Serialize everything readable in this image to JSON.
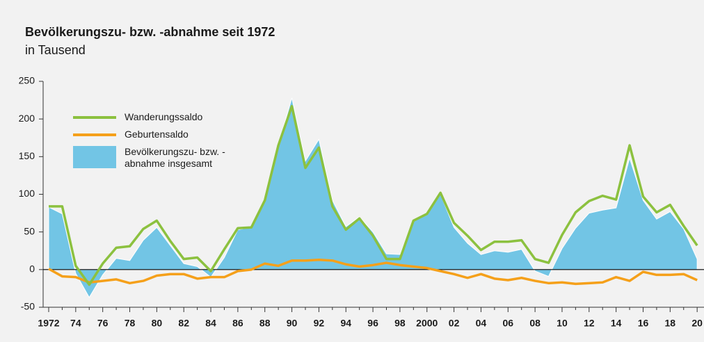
{
  "chart_data": {
    "type": "line",
    "title": "Bevölkerungszu- bzw. -abnahme seit 1972",
    "subtitle": "in Tausend",
    "categories": [
      "1972",
      null,
      "74",
      null,
      "76",
      null,
      "78",
      null,
      "80",
      null,
      "82",
      null,
      "84",
      null,
      "86",
      null,
      "88",
      null,
      "90",
      null,
      "92",
      null,
      "94",
      null,
      "96",
      null,
      "98",
      null,
      "2000",
      null,
      "02",
      null,
      "04",
      null,
      "06",
      null,
      "08",
      null,
      "10",
      null,
      "12",
      null,
      "14",
      null,
      "16",
      null,
      "18",
      null,
      "20"
    ],
    "ylim": [
      -50,
      250
    ],
    "yticks": [
      -50,
      0,
      50,
      100,
      150,
      200,
      250
    ],
    "legend": "upper left",
    "series": [
      {
        "name": "Bevölkerungszu- bzw. -abnahme insgesamt",
        "type": "area",
        "color": "#72c5e5",
        "values": [
          83,
          74,
          -5,
          -37,
          -7,
          15,
          12,
          39,
          56,
          32,
          8,
          4,
          -10,
          16,
          53,
          56,
          90,
          165,
          228,
          144,
          173,
          92,
          57,
          70,
          50,
          21,
          20,
          65,
          73,
          100,
          56,
          35,
          20,
          25,
          23,
          27,
          -2,
          -9,
          28,
          55,
          75,
          79,
          82,
          148,
          92,
          67,
          77,
          54,
          14
        ]
      },
      {
        "name": "Geburtensaldo",
        "type": "line",
        "color": "#f5a01a",
        "values": [
          1,
          -9,
          -10,
          -17,
          -15,
          -13,
          -18,
          -15,
          -8,
          -6,
          -6,
          -12,
          -10,
          -10,
          -2,
          0,
          8,
          5,
          12,
          12,
          13,
          12,
          7,
          4,
          6,
          9,
          6,
          4,
          2,
          -2,
          -6,
          -11,
          -6,
          -12,
          -14,
          -11,
          -15,
          -18,
          -17,
          -19,
          -18,
          -17,
          -10,
          -15,
          -3,
          -7,
          -7,
          -6,
          -14
        ]
      },
      {
        "name": "Wanderungssaldo",
        "type": "line",
        "color": "#8cc13f",
        "values": [
          84,
          84,
          5,
          -20,
          8,
          29,
          31,
          54,
          65,
          38,
          14,
          16,
          -2,
          27,
          55,
          56,
          92,
          165,
          217,
          135,
          162,
          84,
          53,
          68,
          45,
          14,
          14,
          65,
          74,
          102,
          62,
          45,
          26,
          37,
          37,
          39,
          14,
          9,
          46,
          76,
          91,
          98,
          93,
          165,
          97,
          76,
          86,
          58,
          32
        ]
      }
    ]
  }
}
